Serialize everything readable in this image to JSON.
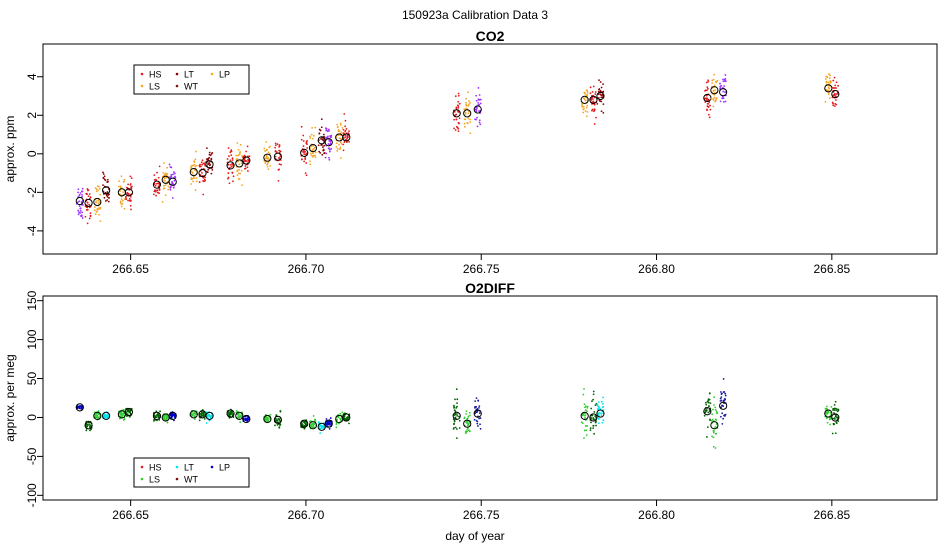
{
  "figure_title": "150923a   Calibration Data 3",
  "x_axis_label": "day of year",
  "chart_data": [
    {
      "type": "scatter",
      "title": "CO2",
      "ylabel": "approx. ppm",
      "xlim": [
        266.625,
        266.88
      ],
      "ylim": [
        -5.2,
        5.7
      ],
      "xticks": [
        266.65,
        266.7,
        266.75,
        266.8,
        266.85
      ],
      "xtick_labels": [
        "266.65",
        "266.70",
        "266.75",
        "266.80",
        "266.85"
      ],
      "yticks": [
        -4,
        -2,
        0,
        2,
        4
      ],
      "ytick_labels": [
        "-4",
        "-2",
        "0",
        "2",
        "4"
      ],
      "legend": {
        "position": "top-left",
        "entries": [
          {
            "label": "HS",
            "color": "#e41a1c"
          },
          {
            "label": "LS",
            "color": "#f5a623"
          },
          {
            "label": "LT",
            "color": "#8b0000"
          },
          {
            "label": "WT",
            "color": "#7b0d0d"
          },
          {
            "label": "LP",
            "color": "#f0b020"
          }
        ]
      },
      "colors": {
        "purple": "#9b30ff",
        "orange": "#f5a623",
        "red": "#e41a1c",
        "darkred": "#8b0000"
      },
      "clusters": [
        {
          "x": 266.6355,
          "mean": -2.45,
          "sd": 0.9,
          "color": "purple"
        },
        {
          "x": 266.638,
          "mean": -2.55,
          "sd": 0.8,
          "color": "red"
        },
        {
          "x": 266.6405,
          "mean": -2.5,
          "sd": 0.8,
          "color": "orange"
        },
        {
          "x": 266.643,
          "mean": -1.9,
          "sd": 0.8,
          "color": "darkred"
        },
        {
          "x": 266.6475,
          "mean": -2.0,
          "sd": 0.7,
          "color": "orange"
        },
        {
          "x": 266.6495,
          "mean": -2.0,
          "sd": 0.7,
          "color": "red"
        },
        {
          "x": 266.6575,
          "mean": -1.6,
          "sd": 0.6,
          "color": "red"
        },
        {
          "x": 266.66,
          "mean": -1.35,
          "sd": 0.6,
          "color": "orange"
        },
        {
          "x": 266.662,
          "mean": -1.45,
          "sd": 0.6,
          "color": "purple"
        },
        {
          "x": 266.668,
          "mean": -0.95,
          "sd": 0.7,
          "color": "orange"
        },
        {
          "x": 266.6705,
          "mean": -1.0,
          "sd": 0.7,
          "color": "red"
        },
        {
          "x": 266.6725,
          "mean": -0.55,
          "sd": 0.7,
          "color": "darkred"
        },
        {
          "x": 266.6785,
          "mean": -0.6,
          "sd": 0.7,
          "color": "red"
        },
        {
          "x": 266.681,
          "mean": -0.5,
          "sd": 0.8,
          "color": "orange"
        },
        {
          "x": 266.683,
          "mean": -0.35,
          "sd": 0.7,
          "color": "red"
        },
        {
          "x": 266.689,
          "mean": -0.2,
          "sd": 0.7,
          "color": "orange"
        },
        {
          "x": 266.692,
          "mean": -0.15,
          "sd": 0.8,
          "color": "red"
        },
        {
          "x": 266.6995,
          "mean": 0.05,
          "sd": 0.8,
          "color": "red"
        },
        {
          "x": 266.702,
          "mean": 0.3,
          "sd": 0.8,
          "color": "orange"
        },
        {
          "x": 266.7045,
          "mean": 0.7,
          "sd": 0.8,
          "color": "darkred"
        },
        {
          "x": 266.7065,
          "mean": 0.6,
          "sd": 0.8,
          "color": "purple"
        },
        {
          "x": 266.7095,
          "mean": 0.85,
          "sd": 0.8,
          "color": "orange"
        },
        {
          "x": 266.7115,
          "mean": 0.85,
          "sd": 0.7,
          "color": "red"
        },
        {
          "x": 266.743,
          "mean": 2.1,
          "sd": 0.8,
          "color": "red"
        },
        {
          "x": 266.746,
          "mean": 2.1,
          "sd": 0.9,
          "color": "orange"
        },
        {
          "x": 266.749,
          "mean": 2.3,
          "sd": 0.8,
          "color": "purple"
        },
        {
          "x": 266.7795,
          "mean": 2.8,
          "sd": 0.9,
          "color": "orange"
        },
        {
          "x": 266.782,
          "mean": 2.8,
          "sd": 0.8,
          "color": "red"
        },
        {
          "x": 266.784,
          "mean": 3.0,
          "sd": 0.8,
          "color": "darkred"
        },
        {
          "x": 266.8145,
          "mean": 2.9,
          "sd": 0.7,
          "color": "red"
        },
        {
          "x": 266.8165,
          "mean": 3.3,
          "sd": 0.8,
          "color": "orange"
        },
        {
          "x": 266.819,
          "mean": 3.2,
          "sd": 0.9,
          "color": "purple"
        },
        {
          "x": 266.849,
          "mean": 3.4,
          "sd": 0.7,
          "color": "orange"
        },
        {
          "x": 266.851,
          "mean": 3.1,
          "sd": 0.7,
          "color": "red"
        }
      ]
    },
    {
      "type": "scatter",
      "title": "O2DIFF",
      "ylabel": "approx. per meg",
      "xlim": [
        266.625,
        266.88
      ],
      "ylim": [
        -106,
        156
      ],
      "xticks": [
        266.65,
        266.7,
        266.75,
        266.8,
        266.85
      ],
      "xtick_labels": [
        "266.65",
        "266.70",
        "266.75",
        "266.80",
        "266.85"
      ],
      "yticks": [
        -100,
        -50,
        0,
        50,
        100,
        150
      ],
      "ytick_labels": [
        "-100",
        "-50",
        "0",
        "50",
        "100",
        "150"
      ],
      "legend": {
        "position": "bottom-left",
        "entries": [
          {
            "label": "HS",
            "color": "#e41a1c"
          },
          {
            "label": "LS",
            "color": "#32cd32"
          },
          {
            "label": "LT",
            "color": "#00e5ee"
          },
          {
            "label": "WT",
            "color": "#7b0d0d"
          },
          {
            "label": "LP",
            "color": "#0000cd"
          }
        ]
      },
      "colors": {
        "blue": "#0000cd",
        "darkgreen": "#006400",
        "green": "#32cd32",
        "cyan": "#00e5ee",
        "navy": "#1a1aa0"
      },
      "clusters": [
        {
          "x": 266.6355,
          "mean": 13,
          "sd": 2.5,
          "color": "blue"
        },
        {
          "x": 266.638,
          "mean": -10,
          "sd": 6,
          "color": "darkgreen"
        },
        {
          "x": 266.6405,
          "mean": 2,
          "sd": 5,
          "color": "green"
        },
        {
          "x": 266.643,
          "mean": 2,
          "sd": 4,
          "color": "cyan"
        },
        {
          "x": 266.6475,
          "mean": 4,
          "sd": 5,
          "color": "green"
        },
        {
          "x": 266.6495,
          "mean": 7,
          "sd": 6,
          "color": "darkgreen"
        },
        {
          "x": 266.6575,
          "mean": 2,
          "sd": 5,
          "color": "darkgreen"
        },
        {
          "x": 266.66,
          "mean": 0,
          "sd": 5,
          "color": "green"
        },
        {
          "x": 266.662,
          "mean": 2,
          "sd": 4,
          "color": "blue"
        },
        {
          "x": 266.668,
          "mean": 4,
          "sd": 5,
          "color": "green"
        },
        {
          "x": 266.6705,
          "mean": 4,
          "sd": 5,
          "color": "darkgreen"
        },
        {
          "x": 266.6725,
          "mean": 2,
          "sd": 5,
          "color": "cyan"
        },
        {
          "x": 266.6785,
          "mean": 5,
          "sd": 5,
          "color": "darkgreen"
        },
        {
          "x": 266.681,
          "mean": 2,
          "sd": 5,
          "color": "green"
        },
        {
          "x": 266.683,
          "mean": -2,
          "sd": 4,
          "color": "blue"
        },
        {
          "x": 266.689,
          "mean": -2,
          "sd": 5,
          "color": "green"
        },
        {
          "x": 266.692,
          "mean": -3,
          "sd": 8,
          "color": "darkgreen"
        },
        {
          "x": 266.6995,
          "mean": -8,
          "sd": 5,
          "color": "darkgreen"
        },
        {
          "x": 266.702,
          "mean": -10,
          "sd": 8,
          "color": "green"
        },
        {
          "x": 266.7045,
          "mean": -12,
          "sd": 6,
          "color": "cyan"
        },
        {
          "x": 266.7065,
          "mean": -8,
          "sd": 6,
          "color": "blue"
        },
        {
          "x": 266.7095,
          "mean": -2,
          "sd": 8,
          "color": "green"
        },
        {
          "x": 266.7115,
          "mean": 0,
          "sd": 6,
          "color": "darkgreen"
        },
        {
          "x": 266.743,
          "mean": 2,
          "sd": 25,
          "color": "darkgreen"
        },
        {
          "x": 266.746,
          "mean": -8,
          "sd": 15,
          "color": "green"
        },
        {
          "x": 266.749,
          "mean": 5,
          "sd": 20,
          "color": "navy"
        },
        {
          "x": 266.7795,
          "mean": 2,
          "sd": 30,
          "color": "green"
        },
        {
          "x": 266.782,
          "mean": 0,
          "sd": 25,
          "color": "darkgreen"
        },
        {
          "x": 266.784,
          "mean": 5,
          "sd": 15,
          "color": "cyan"
        },
        {
          "x": 266.8145,
          "mean": 8,
          "sd": 20,
          "color": "darkgreen"
        },
        {
          "x": 266.8165,
          "mean": -10,
          "sd": 25,
          "color": "green"
        },
        {
          "x": 266.819,
          "mean": 15,
          "sd": 20,
          "color": "navy"
        },
        {
          "x": 266.849,
          "mean": 5,
          "sd": 15,
          "color": "green"
        },
        {
          "x": 266.851,
          "mean": 0,
          "sd": 20,
          "color": "darkgreen"
        }
      ]
    }
  ]
}
